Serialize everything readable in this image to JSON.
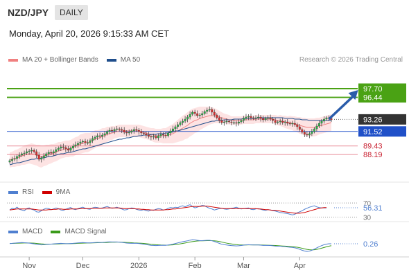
{
  "header": {
    "pair": "NZD/JPY",
    "period": "DAILY",
    "datetime": "Monday, April 20, 2026 9:15:33 AM CET",
    "credit": "Research © 2026 Trading Central"
  },
  "legend_main": [
    {
      "label": "MA 20 + Bollinger Bands",
      "color": "#f08080"
    },
    {
      "label": "MA 50",
      "color": "#1f4e8c"
    }
  ],
  "legend_rsi": [
    {
      "label": "RSI",
      "color": "#4f7fd0"
    },
    {
      "label": "9MA",
      "color": "#d00000"
    }
  ],
  "legend_macd": [
    {
      "label": "MACD",
      "color": "#4f7fd0"
    },
    {
      "label": "MACD Signal",
      "color": "#3a9a1a"
    }
  ],
  "colors": {
    "resistance": "#4aa214",
    "support": "#2050c8",
    "target": "#e06070",
    "current_price_bg": "#333333",
    "arrow": "#2a5caa",
    "bollinger_fill": "#fde0e0"
  },
  "chart_data": {
    "type": "candlestick",
    "main": {
      "ylim": [
        85.5,
        100.5
      ],
      "x_ticks": [
        {
          "label": "Nov",
          "index": 8
        },
        {
          "label": "Dec",
          "index": 30
        },
        {
          "label": "2026",
          "index": 53
        },
        {
          "label": "Feb",
          "index": 76
        },
        {
          "label": "Mar",
          "index": 96
        },
        {
          "label": "Apr",
          "index": 119
        }
      ],
      "levels": [
        {
          "value": 97.7,
          "label": "97.70",
          "kind": "resistance"
        },
        {
          "value": 96.44,
          "label": "96.44",
          "kind": "resistance"
        },
        {
          "value": 93.26,
          "label": "93.26",
          "kind": "current"
        },
        {
          "value": 91.52,
          "label": "91.52",
          "kind": "support"
        },
        {
          "value": 89.43,
          "label": "89.43",
          "kind": "target"
        },
        {
          "value": 88.19,
          "label": "88.19",
          "kind": "target"
        }
      ],
      "arrow": {
        "from_index": 131,
        "from_value": 93.3,
        "to_index": 143,
        "to_value": 97.5
      },
      "close": [
        87.3,
        87.5,
        87.6,
        87.9,
        88.1,
        88.3,
        88.4,
        88.6,
        88.7,
        88.8,
        88.6,
        88.1,
        87.5,
        87.7,
        88.0,
        88.3,
        88.5,
        88.4,
        88.6,
        88.9,
        89.1,
        89.3,
        89.2,
        89.0,
        88.8,
        89.1,
        89.4,
        89.6,
        89.8,
        90.0,
        90.1,
        89.9,
        89.9,
        90.2,
        90.5,
        90.7,
        90.9,
        90.8,
        91.0,
        91.2,
        91.5,
        91.7,
        91.6,
        91.8,
        91.9,
        91.8,
        91.7,
        91.4,
        91.3,
        91.4,
        91.6,
        91.8,
        91.7,
        91.5,
        91.3,
        91.2,
        91.0,
        90.8,
        90.7,
        90.8,
        90.6,
        90.9,
        91.1,
        91.0,
        90.9,
        91.3,
        91.6,
        91.9,
        92.2,
        92.5,
        92.8,
        93.0,
        93.3,
        93.6,
        94.0,
        94.3,
        94.1,
        93.8,
        93.9,
        94.1,
        94.4,
        94.6,
        94.7,
        94.3,
        93.9,
        93.5,
        93.1,
        92.8,
        92.9,
        93.0,
        92.9,
        92.8,
        92.8,
        92.7,
        92.9,
        93.1,
        93.4,
        93.6,
        93.7,
        93.5,
        93.4,
        93.5,
        93.6,
        93.4,
        93.2,
        93.4,
        93.5,
        93.3,
        93.1,
        92.8,
        92.9,
        93.0,
        92.8,
        92.9,
        92.7,
        92.6,
        92.7,
        92.5,
        92.2,
        91.8,
        91.4,
        91.1,
        91.0,
        91.2,
        91.5,
        91.9,
        92.3,
        92.7,
        93.0,
        93.3,
        93.5,
        93.4,
        93.2
      ],
      "ma20": [
        87.4,
        87.5,
        87.6,
        87.7,
        87.8,
        88.0,
        88.1,
        88.2,
        88.3,
        88.3,
        88.2,
        88.1,
        88.0,
        87.9,
        88.0,
        88.1,
        88.2,
        88.3,
        88.4,
        88.5,
        88.7,
        88.8,
        88.9,
        89.0,
        89.0,
        89.1,
        89.2,
        89.4,
        89.5,
        89.7,
        89.8,
        89.9,
        89.9,
        90.0,
        90.2,
        90.4,
        90.5,
        90.6,
        90.8,
        90.9,
        91.1,
        91.2,
        91.3,
        91.4,
        91.5,
        91.6,
        91.6,
        91.6,
        91.6,
        91.6,
        91.6,
        91.6,
        91.6,
        91.6,
        91.5,
        91.4,
        91.3,
        91.2,
        91.1,
        91.0,
        90.9,
        90.9,
        90.9,
        90.9,
        90.9,
        91.0,
        91.1,
        91.2,
        91.4,
        91.6,
        91.8,
        92.0,
        92.2,
        92.4,
        92.7,
        92.9,
        93.1,
        93.2,
        93.4,
        93.5,
        93.6,
        93.7,
        93.8,
        93.8,
        93.8,
        93.7,
        93.6,
        93.5,
        93.4,
        93.3,
        93.2,
        93.1,
        93.1,
        93.1,
        93.1,
        93.1,
        93.2,
        93.2,
        93.2,
        93.2,
        93.2,
        93.3,
        93.3,
        93.3,
        93.3,
        93.3,
        93.3,
        93.3,
        93.3,
        93.2,
        93.1,
        93.1,
        93.0,
        92.9,
        92.8,
        92.8,
        92.7,
        92.6,
        92.5,
        92.4,
        92.3,
        92.2,
        92.1,
        92.1,
        92.1,
        92.1,
        92.2,
        92.3,
        92.4,
        92.5,
        92.6,
        92.7,
        92.8
      ],
      "ma50": [
        86.7,
        86.8,
        86.9,
        87.0,
        87.0,
        87.1,
        87.2,
        87.3,
        87.4,
        87.5,
        87.5,
        87.6,
        87.6,
        87.7,
        87.7,
        87.8,
        87.9,
        87.9,
        88.0,
        88.1,
        88.2,
        88.3,
        88.3,
        88.4,
        88.5,
        88.5,
        88.6,
        88.7,
        88.8,
        88.9,
        89.0,
        89.0,
        89.1,
        89.2,
        89.3,
        89.4,
        89.5,
        89.6,
        89.7,
        89.8,
        89.9,
        90.0,
        90.1,
        90.2,
        90.3,
        90.4,
        90.4,
        90.5,
        90.6,
        90.6,
        90.7,
        90.8,
        90.8,
        90.9,
        90.9,
        91.0,
        91.0,
        91.0,
        91.1,
        91.1,
        91.1,
        91.2,
        91.2,
        91.2,
        91.3,
        91.3,
        91.4,
        91.5,
        91.6,
        91.6,
        91.7,
        91.8,
        91.9,
        92.0,
        92.1,
        92.2,
        92.3,
        92.4,
        92.5,
        92.6,
        92.7,
        92.8,
        92.9,
        93.0,
        93.0,
        93.1,
        93.1,
        93.1,
        93.2,
        93.2,
        93.2,
        93.2,
        93.3,
        93.3,
        93.3,
        93.3,
        93.4,
        93.4,
        93.4,
        93.4,
        93.4,
        93.4,
        93.5,
        93.5,
        93.5,
        93.5,
        93.5,
        93.5,
        93.5,
        93.5,
        93.5,
        93.5,
        93.5,
        93.4,
        93.4,
        93.4,
        93.4,
        93.3,
        93.3,
        93.3,
        93.2,
        93.2,
        93.2,
        93.1,
        93.1,
        93.1,
        93.1,
        93.1,
        93.1,
        93.1,
        93.1,
        93.1,
        93.1
      ],
      "bb_width": [
        1.1,
        1.1,
        1.2,
        1.2,
        1.3,
        1.3,
        1.4,
        1.4,
        1.4,
        1.5,
        1.5,
        1.5,
        1.6,
        1.6,
        1.5,
        1.5,
        1.4,
        1.4,
        1.3,
        1.3,
        1.3,
        1.2,
        1.2,
        1.2,
        1.2,
        1.2,
        1.3,
        1.3,
        1.3,
        1.4,
        1.4,
        1.4,
        1.4,
        1.3,
        1.3,
        1.3,
        1.2,
        1.2,
        1.2,
        1.1,
        1.1,
        1.0,
        1.0,
        0.9,
        0.9,
        0.9,
        0.9,
        0.9,
        0.9,
        0.9,
        0.9,
        0.9,
        0.9,
        0.9,
        0.9,
        0.9,
        0.9,
        0.9,
        0.9,
        1.0,
        1.0,
        1.0,
        1.0,
        1.1,
        1.1,
        1.2,
        1.3,
        1.4,
        1.5,
        1.6,
        1.7,
        1.8,
        1.8,
        1.9,
        1.9,
        1.9,
        1.8,
        1.8,
        1.7,
        1.6,
        1.5,
        1.4,
        1.3,
        1.2,
        1.1,
        1.0,
        0.9,
        0.8,
        0.7,
        0.7,
        0.7,
        0.6,
        0.6,
        0.6,
        0.6,
        0.6,
        0.6,
        0.6,
        0.6,
        0.6,
        0.6,
        0.6,
        0.6,
        0.6,
        0.6,
        0.6,
        0.6,
        0.6,
        0.6,
        0.7,
        0.7,
        0.8,
        0.8,
        0.9,
        0.9,
        1.0,
        1.0,
        1.1,
        1.1,
        1.2,
        1.2,
        1.3,
        1.3,
        1.3,
        1.3,
        1.3,
        1.3,
        1.2,
        1.2,
        1.2,
        1.2,
        1.2,
        1.2
      ]
    },
    "rsi": {
      "ylim": [
        25,
        80
      ],
      "guides": [
        {
          "value": 70,
          "label": "70"
        },
        {
          "value": 30,
          "label": "30"
        }
      ],
      "current": {
        "value": 56.31,
        "label": "56.31"
      },
      "rsi": [
        50,
        55,
        53,
        58,
        52,
        50,
        48,
        54,
        56,
        52,
        50,
        45,
        44,
        48,
        52,
        55,
        54,
        51,
        53,
        56,
        54,
        50,
        49,
        52,
        55,
        57,
        53,
        51,
        54,
        56,
        58,
        55,
        53,
        52,
        56,
        58,
        57,
        55,
        56,
        58,
        60,
        57,
        55,
        56,
        58,
        55,
        53,
        50,
        51,
        54,
        56,
        55,
        52,
        50,
        49,
        51,
        48,
        47,
        50,
        49,
        52,
        54,
        53,
        50,
        51,
        55,
        57,
        56,
        58,
        57,
        60,
        62,
        59,
        63,
        65,
        60,
        56,
        58,
        61,
        63,
        62,
        58,
        55,
        53,
        50,
        52,
        54,
        55,
        53,
        52,
        53,
        55,
        56,
        58,
        55,
        53,
        54,
        55,
        56,
        52,
        51,
        53,
        54,
        52,
        50,
        49,
        51,
        50,
        48,
        47,
        45,
        43,
        42,
        41,
        40,
        38,
        36,
        38,
        42,
        45,
        48,
        52,
        55,
        58,
        60,
        62,
        59,
        57,
        56,
        56,
        56
      ],
      "ma9": [
        50,
        51,
        52,
        53,
        53,
        53,
        53,
        53,
        53,
        53,
        52,
        51,
        50,
        50,
        50,
        50,
        51,
        51,
        52,
        52,
        53,
        53,
        52,
        52,
        52,
        53,
        53,
        53,
        53,
        54,
        54,
        54,
        54,
        54,
        55,
        55,
        55,
        55,
        55,
        56,
        56,
        56,
        56,
        56,
        56,
        56,
        55,
        54,
        54,
        54,
        54,
        54,
        53,
        53,
        52,
        52,
        51,
        51,
        50,
        50,
        50,
        50,
        50,
        50,
        51,
        51,
        52,
        53,
        53,
        54,
        55,
        56,
        57,
        58,
        59,
        60,
        60,
        60,
        60,
        61,
        61,
        61,
        60,
        59,
        58,
        57,
        56,
        55,
        54,
        54,
        54,
        54,
        54,
        54,
        54,
        54,
        54,
        54,
        54,
        54,
        54,
        54,
        53,
        53,
        52,
        51,
        51,
        50,
        49,
        49,
        48,
        47,
        46,
        45,
        44,
        43,
        42,
        41,
        41,
        41,
        42,
        43,
        45,
        47,
        49,
        51,
        53,
        55,
        56,
        57,
        57
      ]
    },
    "macd": {
      "ylim": [
        -1.3,
        1.0
      ],
      "current": {
        "value": 0.26,
        "label": "0.26"
      },
      "macd": [
        0.3,
        0.32,
        0.35,
        0.38,
        0.4,
        0.42,
        0.4,
        0.38,
        0.35,
        0.3,
        0.25,
        0.2,
        0.15,
        0.12,
        0.14,
        0.18,
        0.2,
        0.22,
        0.25,
        0.28,
        0.3,
        0.32,
        0.3,
        0.28,
        0.27,
        0.3,
        0.32,
        0.35,
        0.38,
        0.4,
        0.42,
        0.4,
        0.38,
        0.38,
        0.4,
        0.43,
        0.45,
        0.44,
        0.45,
        0.47,
        0.5,
        0.52,
        0.5,
        0.5,
        0.5,
        0.48,
        0.45,
        0.4,
        0.36,
        0.33,
        0.32,
        0.33,
        0.32,
        0.3,
        0.25,
        0.2,
        0.15,
        0.1,
        0.06,
        0.05,
        0.02,
        0.04,
        0.06,
        0.07,
        0.06,
        0.1,
        0.15,
        0.22,
        0.3,
        0.38,
        0.46,
        0.54,
        0.6,
        0.66,
        0.74,
        0.8,
        0.78,
        0.72,
        0.68,
        0.68,
        0.7,
        0.72,
        0.72,
        0.66,
        0.56,
        0.44,
        0.32,
        0.2,
        0.14,
        0.1,
        0.06,
        0.02,
        0.0,
        -0.02,
        0.0,
        0.03,
        0.08,
        0.12,
        0.14,
        0.12,
        0.1,
        0.1,
        0.1,
        0.08,
        0.04,
        0.04,
        0.05,
        0.03,
        0.0,
        -0.05,
        -0.06,
        -0.06,
        -0.1,
        -0.12,
        -0.16,
        -0.2,
        -0.22,
        -0.28,
        -0.36,
        -0.48,
        -0.6,
        -0.7,
        -0.76,
        -0.72,
        -0.6,
        -0.45,
        -0.28,
        -0.12,
        0.02,
        0.14,
        0.22,
        0.26,
        0.26
      ],
      "signal": [
        0.3,
        0.31,
        0.32,
        0.33,
        0.34,
        0.36,
        0.37,
        0.37,
        0.37,
        0.36,
        0.34,
        0.31,
        0.28,
        0.25,
        0.23,
        0.22,
        0.22,
        0.22,
        0.22,
        0.23,
        0.24,
        0.26,
        0.27,
        0.27,
        0.27,
        0.28,
        0.29,
        0.3,
        0.32,
        0.33,
        0.35,
        0.36,
        0.37,
        0.37,
        0.38,
        0.39,
        0.4,
        0.41,
        0.42,
        0.43,
        0.44,
        0.46,
        0.47,
        0.47,
        0.48,
        0.48,
        0.47,
        0.46,
        0.44,
        0.42,
        0.4,
        0.38,
        0.37,
        0.35,
        0.33,
        0.31,
        0.28,
        0.24,
        0.2,
        0.17,
        0.14,
        0.12,
        0.1,
        0.09,
        0.08,
        0.08,
        0.1,
        0.12,
        0.16,
        0.2,
        0.25,
        0.31,
        0.37,
        0.43,
        0.49,
        0.55,
        0.6,
        0.63,
        0.65,
        0.66,
        0.67,
        0.68,
        0.69,
        0.68,
        0.66,
        0.62,
        0.56,
        0.49,
        0.42,
        0.35,
        0.29,
        0.24,
        0.19,
        0.15,
        0.12,
        0.1,
        0.1,
        0.1,
        0.11,
        0.11,
        0.11,
        0.11,
        0.11,
        0.1,
        0.09,
        0.08,
        0.07,
        0.06,
        0.05,
        0.03,
        0.01,
        -0.01,
        -0.03,
        -0.05,
        -0.07,
        -0.1,
        -0.13,
        -0.16,
        -0.2,
        -0.26,
        -0.33,
        -0.41,
        -0.48,
        -0.53,
        -0.55,
        -0.53,
        -0.48,
        -0.41,
        -0.32,
        -0.23,
        -0.14,
        -0.06,
        0.01
      ]
    }
  }
}
